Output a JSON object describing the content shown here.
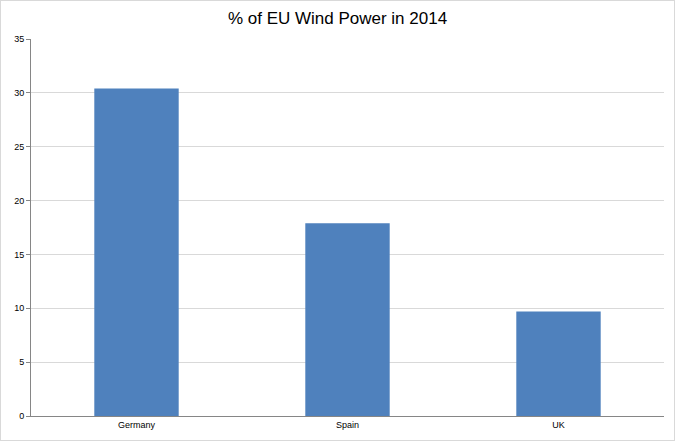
{
  "chart_data": {
    "type": "bar",
    "title": "% of EU Wind Power in 2014",
    "categories": [
      "Germany",
      "Spain",
      "UK"
    ],
    "values": [
      30.4,
      17.9,
      9.7
    ],
    "color": "#4f81bd",
    "ylim": [
      0,
      35
    ],
    "yticks": [
      0,
      5,
      10,
      15,
      20,
      25,
      30,
      35
    ],
    "grid": true
  }
}
